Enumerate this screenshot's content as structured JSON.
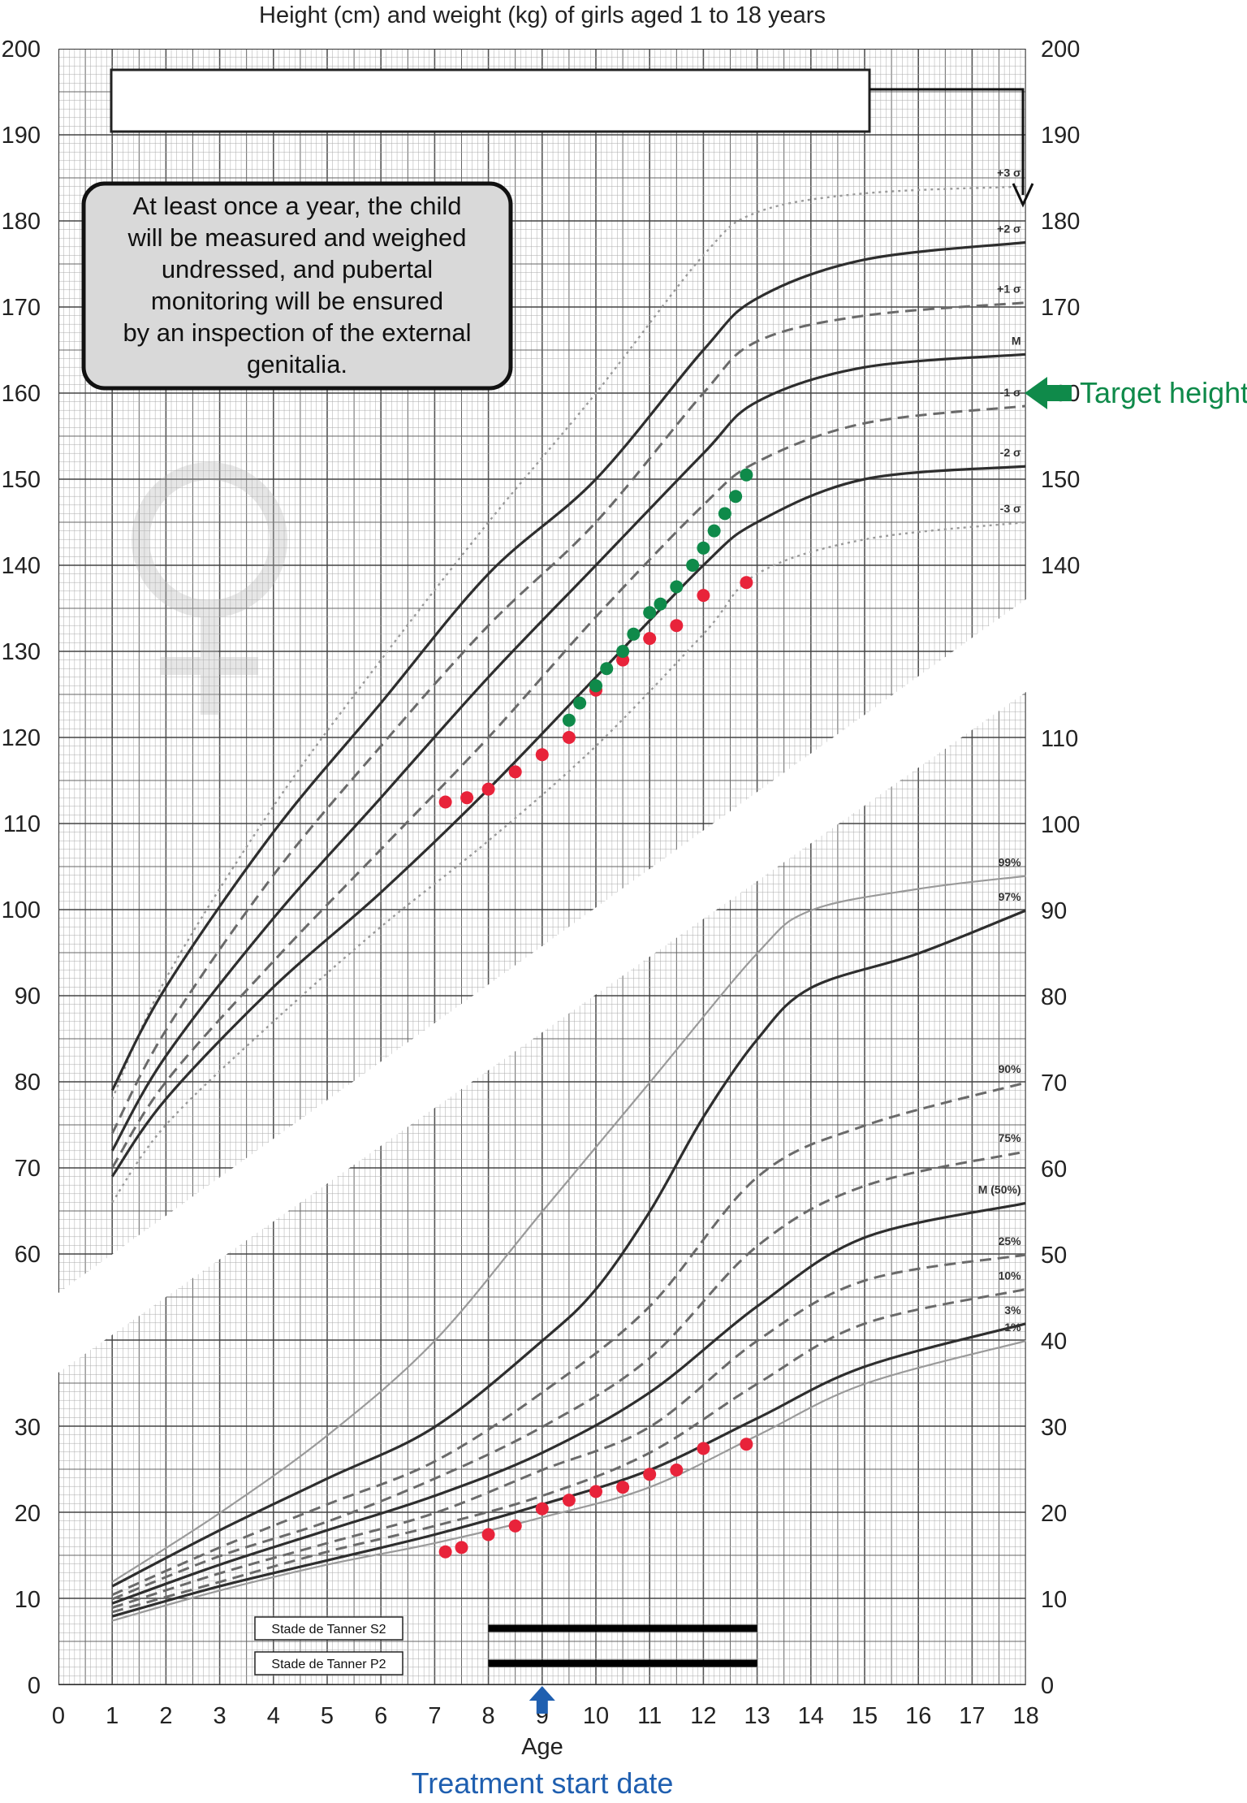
{
  "chart_data": {
    "type": "line",
    "title": "Height (cm) and weight (kg) of girls aged 1 to 18 years",
    "xlabel": "Age",
    "x_ticks": [
      0,
      1,
      2,
      3,
      4,
      5,
      6,
      7,
      8,
      9,
      10,
      11,
      12,
      13,
      14,
      15,
      16,
      17,
      18
    ],
    "xlim": [
      0,
      18
    ],
    "grid": true,
    "left_ticks": [
      0,
      10,
      20,
      30,
      60,
      70,
      80,
      90,
      100,
      110,
      120,
      130,
      140,
      150,
      160,
      170,
      180,
      190,
      200
    ],
    "right_ticks": [
      0,
      10,
      20,
      30,
      40,
      50,
      60,
      70,
      80,
      90,
      100,
      110,
      140,
      150,
      160,
      170,
      180,
      190,
      200
    ],
    "height_panel": {
      "unit": "cm",
      "ylim": [
        55,
        200
      ],
      "curves": [
        {
          "label": "+3 σ",
          "style": "dotted",
          "points": [
            [
              1,
              78
            ],
            [
              2,
              92
            ],
            [
              4,
              112
            ],
            [
              6,
              129
            ],
            [
              8,
              145
            ],
            [
              10,
              160
            ],
            [
              12,
              176
            ],
            [
              13,
              181
            ],
            [
              15,
              183.2
            ],
            [
              18,
              184
            ]
          ]
        },
        {
          "label": "+2 σ",
          "style": "solid",
          "points": [
            [
              1,
              79
            ],
            [
              2,
              91
            ],
            [
              4,
              109
            ],
            [
              6,
              124
            ],
            [
              8,
              139
            ],
            [
              10,
              150
            ],
            [
              12,
              165
            ],
            [
              13,
              171
            ],
            [
              15,
              175.5
            ],
            [
              18,
              177.5
            ]
          ]
        },
        {
          "label": "+1 σ",
          "style": "dashed",
          "points": [
            [
              1,
              74
            ],
            [
              2,
              86
            ],
            [
              4,
              104
            ],
            [
              6,
              119
            ],
            [
              8,
              133
            ],
            [
              10,
              145
            ],
            [
              12,
              160
            ],
            [
              13,
              166
            ],
            [
              15,
              169
            ],
            [
              18,
              170.5
            ]
          ]
        },
        {
          "label": "M",
          "style": "solid",
          "points": [
            [
              1,
              72
            ],
            [
              2,
              83
            ],
            [
              4,
              99
            ],
            [
              6,
              113
            ],
            [
              8,
              127
            ],
            [
              10,
              140
            ],
            [
              12,
              153
            ],
            [
              13,
              159
            ],
            [
              15,
              163
            ],
            [
              18,
              164.5
            ]
          ]
        },
        {
          "label": "-1 σ",
          "style": "dashed",
          "points": [
            [
              1,
              70
            ],
            [
              2,
              80
            ],
            [
              4,
              94
            ],
            [
              6,
              107
            ],
            [
              8,
              120
            ],
            [
              10,
              134
            ],
            [
              12,
              147
            ],
            [
              13,
              152
            ],
            [
              15,
              156.5
            ],
            [
              18,
              158.5
            ]
          ]
        },
        {
          "label": "-2 σ",
          "style": "solid",
          "points": [
            [
              1,
              69
            ],
            [
              2,
              78
            ],
            [
              4,
              91
            ],
            [
              6,
              102
            ],
            [
              8,
              114
            ],
            [
              10,
              127
            ],
            [
              12,
              140
            ],
            [
              13,
              145
            ],
            [
              15,
              150
            ],
            [
              18,
              151.5
            ]
          ]
        },
        {
          "label": "-3 σ",
          "style": "dotted",
          "points": [
            [
              1,
              66
            ],
            [
              2,
              75
            ],
            [
              4,
              87
            ],
            [
              6,
              98
            ],
            [
              8,
              108
            ],
            [
              10,
              119
            ],
            [
              12,
              132
            ],
            [
              13,
              139
            ],
            [
              15,
              143
            ],
            [
              18,
              145
            ]
          ]
        }
      ],
      "patient_red": [
        [
          7.2,
          112.5
        ],
        [
          7.6,
          113
        ],
        [
          8,
          114
        ],
        [
          8.5,
          116
        ],
        [
          9,
          118
        ],
        [
          9.5,
          120
        ],
        [
          10,
          125.5
        ],
        [
          10.5,
          129
        ],
        [
          11,
          131.5
        ],
        [
          11.5,
          133
        ],
        [
          12,
          136.5
        ],
        [
          12.8,
          138
        ]
      ],
      "patient_green": [
        [
          9.5,
          122
        ],
        [
          9.7,
          124
        ],
        [
          10,
          126
        ],
        [
          10.2,
          128
        ],
        [
          10.5,
          130
        ],
        [
          10.7,
          132
        ],
        [
          11,
          134.5
        ],
        [
          11.2,
          135.5
        ],
        [
          11.5,
          137.5
        ],
        [
          11.8,
          140
        ],
        [
          12,
          142
        ],
        [
          12.2,
          144
        ],
        [
          12.4,
          146
        ],
        [
          12.6,
          148
        ],
        [
          12.8,
          150.5
        ]
      ],
      "target_height": 160,
      "target_label": "Target height"
    },
    "weight_panel": {
      "unit": "kg",
      "ylim": [
        0,
        93
      ],
      "curves": [
        {
          "label": "99%",
          "style": "solid-light",
          "points": [
            [
              1,
              12
            ],
            [
              3,
              20
            ],
            [
              5,
              29
            ],
            [
              7,
              40
            ],
            [
              9,
              55
            ],
            [
              11,
              70
            ],
            [
              13,
              85
            ],
            [
              14,
              90
            ],
            [
              16,
              92.5
            ],
            [
              18,
              94
            ]
          ]
        },
        {
          "label": "97%",
          "style": "solid",
          "points": [
            [
              1,
              11.5
            ],
            [
              3,
              18
            ],
            [
              5,
              24
            ],
            [
              7,
              30
            ],
            [
              9,
              40
            ],
            [
              10,
              46
            ],
            [
              11,
              55
            ],
            [
              12,
              66
            ],
            [
              13,
              75
            ],
            [
              14,
              81
            ],
            [
              16,
              85
            ],
            [
              18,
              90
            ]
          ]
        },
        {
          "label": "90%",
          "style": "dashed",
          "points": [
            [
              1,
              10.5
            ],
            [
              3,
              16
            ],
            [
              5,
              21
            ],
            [
              7,
              26
            ],
            [
              9,
              34
            ],
            [
              11,
              44
            ],
            [
              13,
              59
            ],
            [
              15,
              65
            ],
            [
              18,
              70
            ]
          ]
        },
        {
          "label": "75%",
          "style": "dashed",
          "points": [
            [
              1,
              10
            ],
            [
              3,
              15
            ],
            [
              5,
              19
            ],
            [
              7,
              24
            ],
            [
              9,
              30
            ],
            [
              11,
              38
            ],
            [
              13,
              51
            ],
            [
              15,
              58
            ],
            [
              18,
              62
            ]
          ]
        },
        {
          "label": "M (50%)",
          "style": "solid",
          "points": [
            [
              1,
              9.5
            ],
            [
              3,
              14
            ],
            [
              5,
              18
            ],
            [
              7,
              22
            ],
            [
              9,
              27
            ],
            [
              11,
              34
            ],
            [
              13,
              44
            ],
            [
              15,
              52
            ],
            [
              18,
              56
            ]
          ]
        },
        {
          "label": "25%",
          "style": "dashed",
          "points": [
            [
              1,
              9
            ],
            [
              3,
              13
            ],
            [
              5,
              16.5
            ],
            [
              7,
              20
            ],
            [
              9,
              25
            ],
            [
              11,
              30
            ],
            [
              13,
              40
            ],
            [
              15,
              47
            ],
            [
              18,
              50
            ]
          ]
        },
        {
          "label": "10%",
          "style": "dashed",
          "points": [
            [
              1,
              8.5
            ],
            [
              3,
              12
            ],
            [
              5,
              15.5
            ],
            [
              7,
              18.5
            ],
            [
              9,
              22
            ],
            [
              11,
              27
            ],
            [
              13,
              35
            ],
            [
              15,
              42
            ],
            [
              18,
              46
            ]
          ]
        },
        {
          "label": "3%",
          "style": "solid",
          "points": [
            [
              1,
              8
            ],
            [
              3,
              11.5
            ],
            [
              5,
              14.5
            ],
            [
              7,
              17.5
            ],
            [
              9,
              21
            ],
            [
              11,
              25
            ],
            [
              13,
              31
            ],
            [
              15,
              37
            ],
            [
              18,
              42
            ]
          ]
        },
        {
          "label": "1%",
          "style": "solid-light",
          "points": [
            [
              1,
              7.5
            ],
            [
              3,
              11
            ],
            [
              5,
              14
            ],
            [
              7,
              16.5
            ],
            [
              9,
              19.5
            ],
            [
              11,
              23
            ],
            [
              13,
              29
            ],
            [
              15,
              35
            ],
            [
              18,
              40
            ]
          ]
        }
      ],
      "patient_red": [
        [
          7.2,
          15.5
        ],
        [
          7.5,
          16
        ],
        [
          8,
          17.5
        ],
        [
          8.5,
          18.5
        ],
        [
          9,
          20.5
        ],
        [
          9.5,
          21.5
        ],
        [
          10,
          22.5
        ],
        [
          10.5,
          23
        ],
        [
          11,
          24.5
        ],
        [
          11.5,
          25
        ],
        [
          12,
          27.5
        ],
        [
          12.8,
          28
        ]
      ]
    },
    "annotation": "At least once a year, the child will be measured and weighed undressed, and pubertal monitoring will be ensured by an inspection of the external genitalia.",
    "tanner": [
      {
        "label": "Stade de Tanner S2",
        "start": 8,
        "end": 13
      },
      {
        "label": "Stade de Tanner P2",
        "start": 8,
        "end": 13
      }
    ],
    "treatment_start_age": 9,
    "treatment_label": "Treatment start date",
    "colors": {
      "red": "#e8233a",
      "green": "#0f8a4a",
      "blue": "#1f5fb0",
      "curve": "#333333",
      "grid": "#888888"
    }
  }
}
